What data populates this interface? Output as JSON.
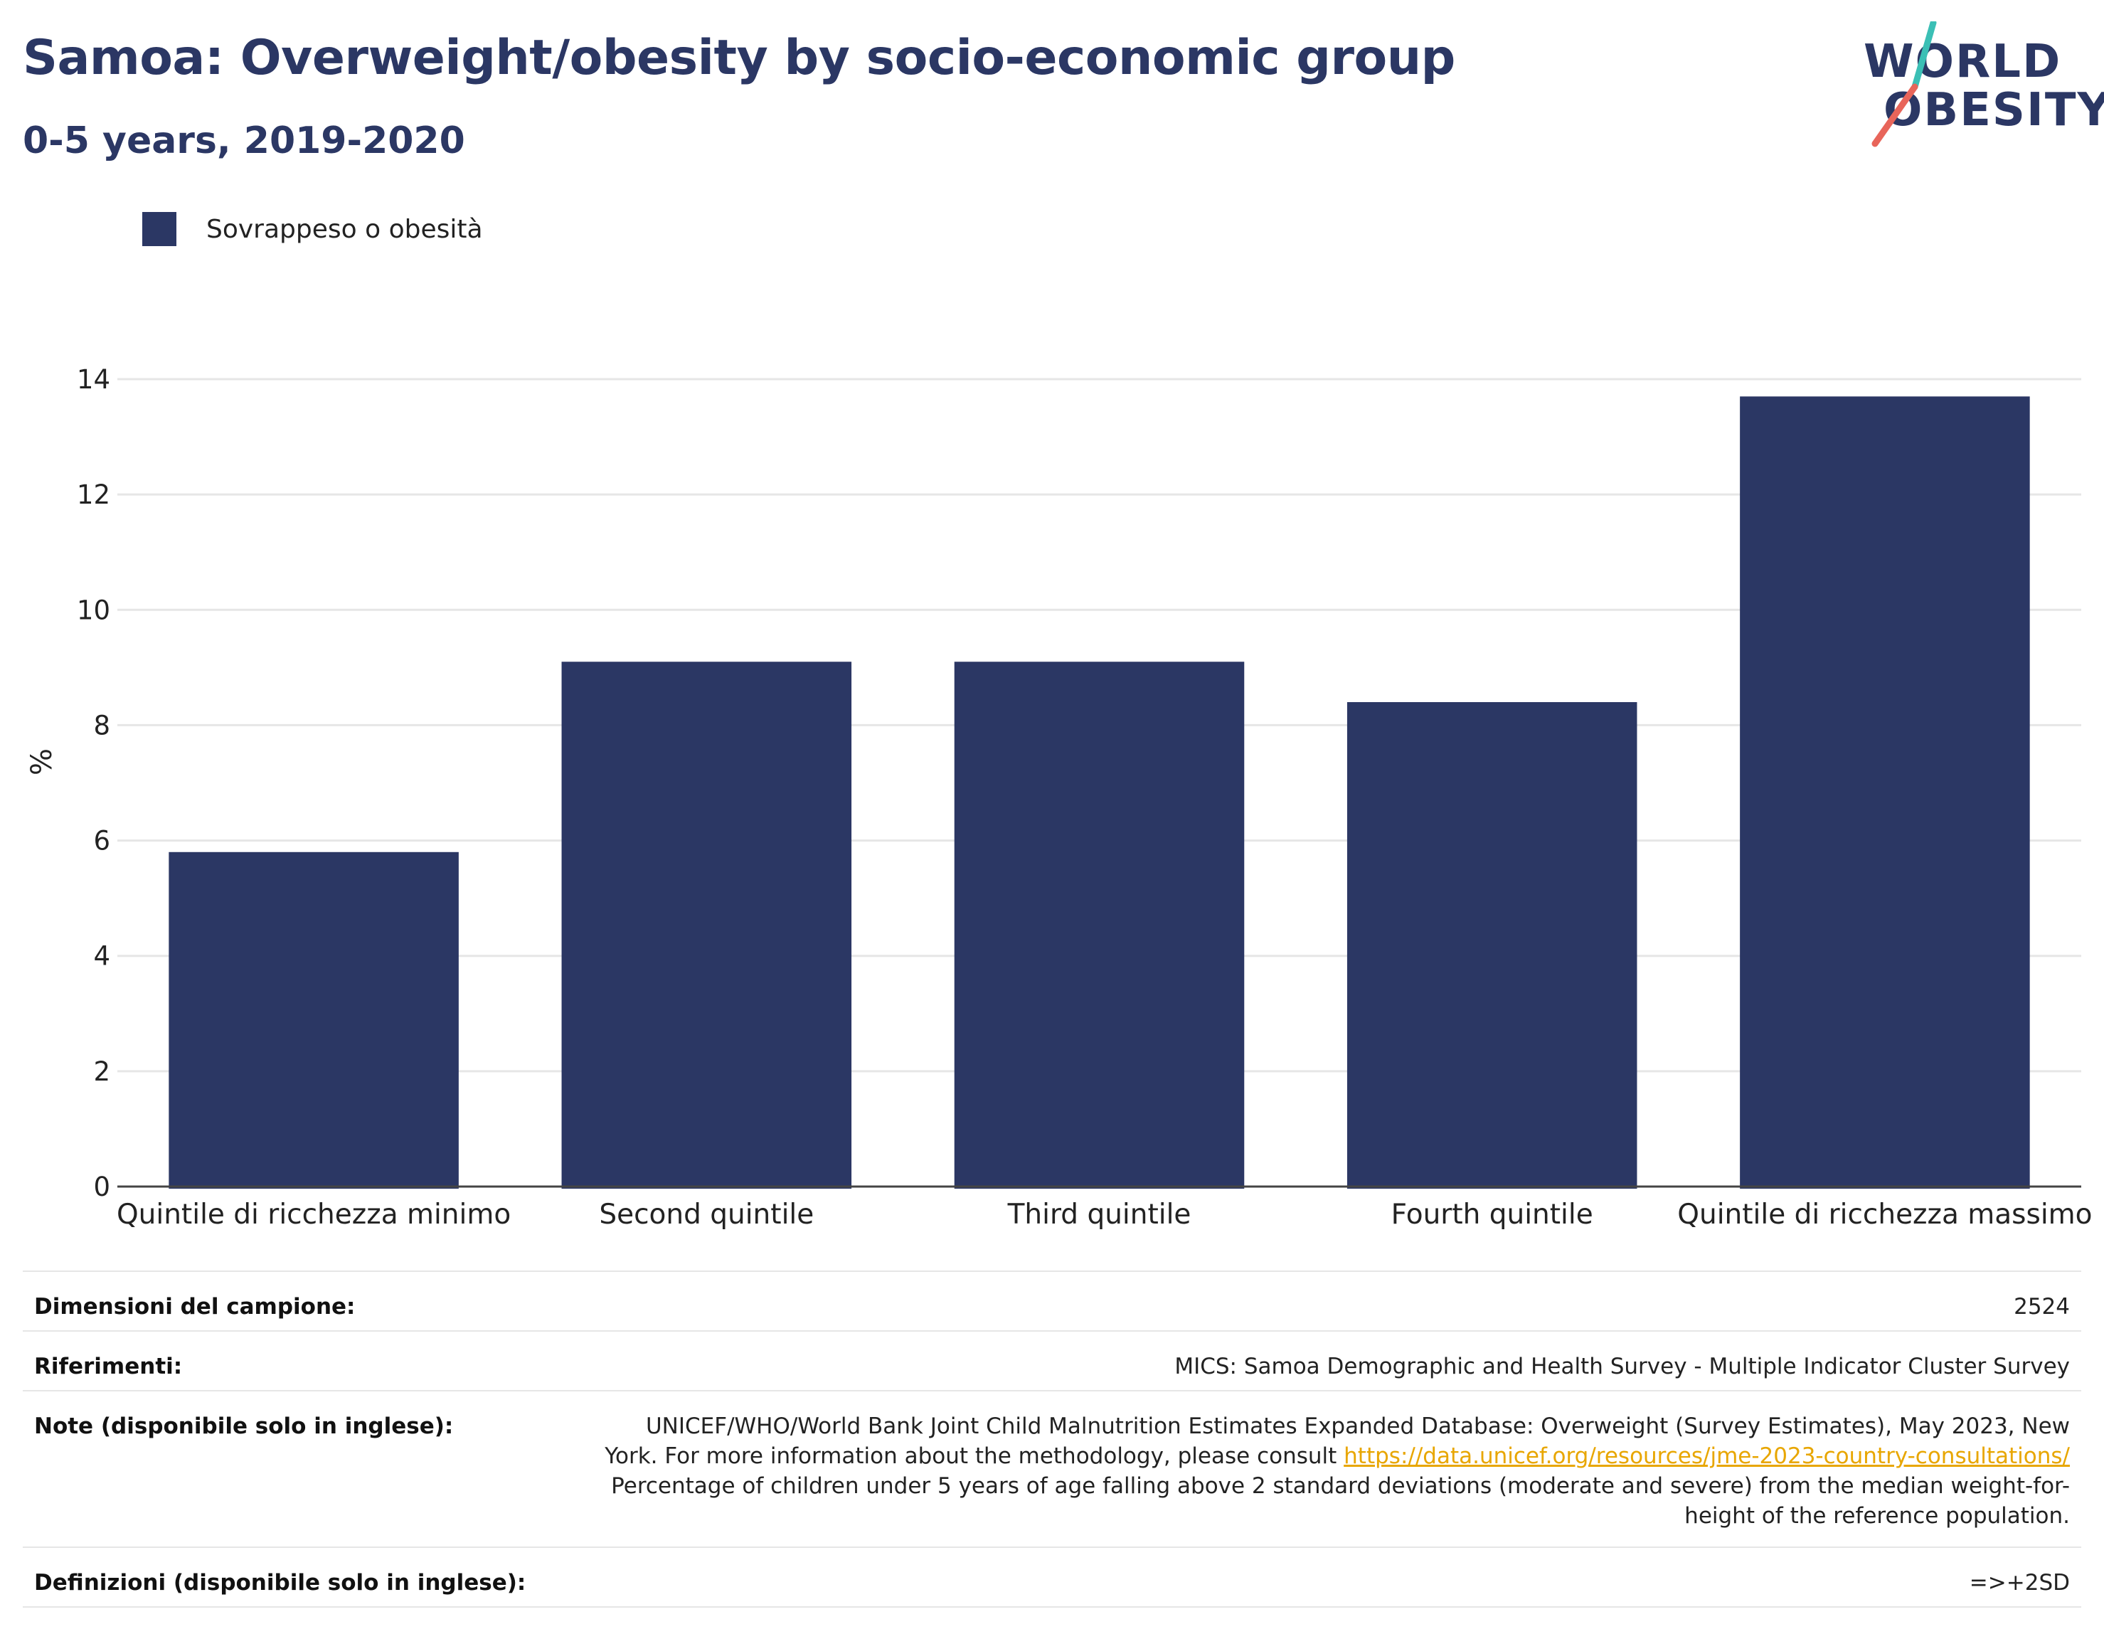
{
  "header": {
    "title": "Samoa: Overweight/obesity by socio-economic group",
    "subtitle": "0-5 years, 2019-2020"
  },
  "logo": {
    "line1": "WORLD",
    "line2": "OBESITY",
    "colors": {
      "text": "#2b3764",
      "slash_top": "#3bbfb5",
      "slash_bottom": "#e8655a"
    }
  },
  "legend": {
    "label": "Sovrappeso o obesità",
    "color": "#2b3764"
  },
  "chart_data": {
    "type": "bar",
    "categories": [
      "Quintile di ricchezza minimo",
      "Second quintile",
      "Third quintile",
      "Fourth quintile",
      "Quintile di ricchezza massimo"
    ],
    "series": [
      {
        "name": "Sovrappeso o obesità",
        "values": [
          5.8,
          9.1,
          9.1,
          8.4,
          13.7
        ],
        "color": "#2b3764"
      }
    ],
    "ylabel": "%",
    "ylim": [
      0,
      14
    ],
    "yticks": [
      0,
      2,
      4,
      6,
      8,
      10,
      12,
      14
    ],
    "grid": true,
    "legend_position": "top-left"
  },
  "info": {
    "sample_label": "Dimensioni del campione:",
    "sample_value": "2524",
    "references_label": "Riferimenti:",
    "references_value": "MICS: Samoa Demographic and Health Survey - Multiple Indicator Cluster Survey",
    "notes_label": "Note (disponibile solo in inglese):",
    "notes_line1": "UNICEF/WHO/World Bank Joint Child Malnutrition Estimates Expanded Database: Overweight (Survey Estimates), May 2023, New",
    "notes_line2_prefix": "York. For more information about the methodology, please consult ",
    "notes_link": "https://data.unicef.org/resources/jme-2023-country-consultations/",
    "notes_line3": "Percentage of children under 5 years of age falling above 2 standard deviations (moderate and severe) from the median weight-for-",
    "notes_line4": "height of the reference population.",
    "definitions_label": "Definizioni (disponibile solo in inglese):",
    "definitions_value": "=>+2SD"
  }
}
